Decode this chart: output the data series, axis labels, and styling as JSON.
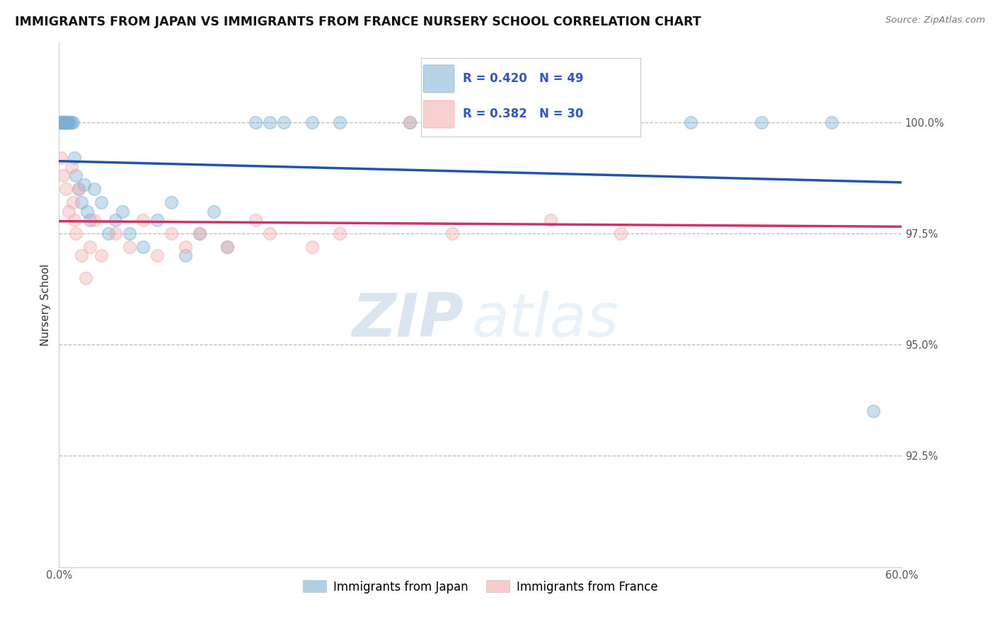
{
  "title": "IMMIGRANTS FROM JAPAN VS IMMIGRANTS FROM FRANCE NURSERY SCHOOL CORRELATION CHART",
  "source": "Source: ZipAtlas.com",
  "xlabel": "",
  "ylabel": "Nursery School",
  "xlim": [
    0.0,
    60.0
  ],
  "ylim": [
    90.0,
    101.8
  ],
  "yticks": [
    92.5,
    95.0,
    97.5,
    100.0
  ],
  "xticks": [
    0.0,
    60.0
  ],
  "xticklabels": [
    "0.0%",
    "60.0%"
  ],
  "yticklabels": [
    "92.5%",
    "95.0%",
    "97.5%",
    "100.0%"
  ],
  "japan_color": "#7BAFD4",
  "france_color": "#F4AAAA",
  "japan_line_color": "#2255AA",
  "france_line_color": "#CC3366",
  "japan_R": 0.42,
  "japan_N": 49,
  "france_R": 0.382,
  "france_N": 30,
  "japan_x": [
    0.1,
    0.15,
    0.2,
    0.25,
    0.3,
    0.35,
    0.4,
    0.45,
    0.5,
    0.55,
    0.6,
    0.65,
    0.7,
    0.8,
    0.9,
    1.0,
    1.1,
    1.2,
    1.4,
    1.6,
    1.8,
    2.0,
    2.2,
    2.5,
    3.0,
    3.5,
    4.0,
    4.5,
    5.0,
    6.0,
    7.0,
    8.0,
    9.0,
    10.0,
    11.0,
    12.0,
    14.0,
    15.0,
    16.0,
    18.0,
    20.0,
    25.0,
    30.0,
    35.0,
    40.0,
    45.0,
    50.0,
    55.0,
    58.0
  ],
  "japan_y": [
    100.0,
    100.0,
    100.0,
    100.0,
    100.0,
    100.0,
    100.0,
    100.0,
    100.0,
    100.0,
    100.0,
    100.0,
    100.0,
    100.0,
    100.0,
    100.0,
    99.2,
    98.8,
    98.5,
    98.2,
    98.6,
    98.0,
    97.8,
    98.5,
    98.2,
    97.5,
    97.8,
    98.0,
    97.5,
    97.2,
    97.8,
    98.2,
    97.0,
    97.5,
    98.0,
    97.2,
    100.0,
    100.0,
    100.0,
    100.0,
    100.0,
    100.0,
    100.0,
    100.0,
    100.0,
    100.0,
    100.0,
    100.0,
    93.5
  ],
  "france_x": [
    0.15,
    0.3,
    0.5,
    0.7,
    0.9,
    1.0,
    1.1,
    1.2,
    1.4,
    1.6,
    1.9,
    2.2,
    2.5,
    3.0,
    4.0,
    5.0,
    6.0,
    7.0,
    8.0,
    9.0,
    10.0,
    12.0,
    14.0,
    15.0,
    18.0,
    20.0,
    25.0,
    28.0,
    35.0,
    40.0
  ],
  "france_y": [
    99.2,
    98.8,
    98.5,
    98.0,
    99.0,
    98.2,
    97.8,
    97.5,
    98.5,
    97.0,
    96.5,
    97.2,
    97.8,
    97.0,
    97.5,
    97.2,
    97.8,
    97.0,
    97.5,
    97.2,
    97.5,
    97.2,
    97.8,
    97.5,
    97.2,
    97.5,
    100.0,
    97.5,
    97.8,
    97.5
  ],
  "watermark_zip": "ZIP",
  "watermark_atlas": "atlas",
  "background_color": "#ffffff",
  "grid_color": "#bbbbbb",
  "title_fontsize": 12.5,
  "label_fontsize": 11,
  "tick_fontsize": 10.5,
  "scatter_size": 160,
  "scatter_alpha": 0.4
}
